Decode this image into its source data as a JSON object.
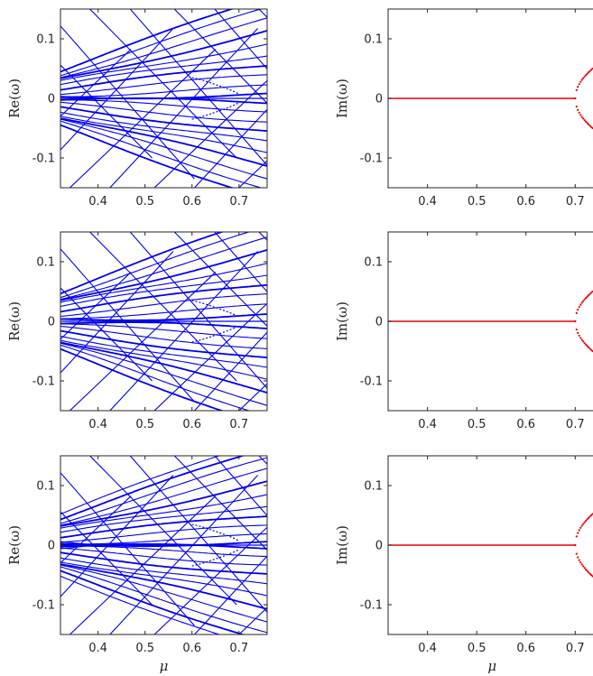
{
  "chart_data": [
    {
      "type": "line",
      "ylabel": "Re(ω)",
      "xlabel": "",
      "xlim": [
        0.32,
        0.76
      ],
      "ylim": [
        -0.15,
        0.15
      ],
      "xticks": [
        0.4,
        0.5,
        0.6,
        0.7
      ],
      "xtick_labels": [
        "0.4",
        "0.5",
        "0.6",
        "0.7"
      ],
      "yticks": [
        0.1,
        0,
        -0.1
      ],
      "ytick_labels": [
        "0.1",
        "0",
        "-0.1"
      ],
      "color": "#0000ee",
      "family_levels": [
        0.005,
        0.015,
        0.03,
        0.045,
        0.06,
        0.075,
        0.09,
        0.105,
        0.12,
        0.135
      ],
      "collision_mu": 0.7,
      "crossing_lines": 16
    },
    {
      "type": "scatter",
      "ylabel": "Im(ω)",
      "xlabel": "",
      "xlim": [
        0.32,
        0.76
      ],
      "ylim": [
        -0.15,
        0.15
      ],
      "xticks": [
        0.4,
        0.5,
        0.6,
        0.7
      ],
      "xtick_labels": [
        "0.4",
        "0.5",
        "0.6",
        "0.7"
      ],
      "yticks": [
        0.1,
        0,
        -0.1
      ],
      "ytick_labels": [
        "0.1",
        "0",
        "-0.1"
      ],
      "color": "#e8000b",
      "baseline": 0,
      "bifurcation_mu": 0.7,
      "branch_max_im": 0.065
    },
    {
      "type": "line",
      "ylabel": "Re(ω)",
      "xlabel": "",
      "xlim": [
        0.32,
        0.76
      ],
      "ylim": [
        -0.15,
        0.15
      ],
      "xticks": [
        0.4,
        0.5,
        0.6,
        0.7
      ],
      "xtick_labels": [
        "0.4",
        "0.5",
        "0.6",
        "0.7"
      ],
      "yticks": [
        0.1,
        0,
        -0.1
      ],
      "ytick_labels": [
        "0.1",
        "0",
        "-0.1"
      ],
      "color": "#0000ee",
      "family_levels": [
        0.008,
        0.02,
        0.035,
        0.05,
        0.065,
        0.08,
        0.095,
        0.11,
        0.125,
        0.14
      ],
      "collision_mu": 0.7,
      "crossing_lines": 16
    },
    {
      "type": "scatter",
      "ylabel": "Im(ω)",
      "xlabel": "",
      "xlim": [
        0.32,
        0.76
      ],
      "ylim": [
        -0.15,
        0.15
      ],
      "xticks": [
        0.4,
        0.5,
        0.6,
        0.7
      ],
      "xtick_labels": [
        "0.4",
        "0.5",
        "0.6",
        "0.7"
      ],
      "yticks": [
        0.1,
        0,
        -0.1
      ],
      "ytick_labels": [
        "0.1",
        "0",
        "-0.1"
      ],
      "color": "#e8000b",
      "baseline": 0,
      "bifurcation_mu": 0.7,
      "branch_max_im": 0.065
    },
    {
      "type": "line",
      "ylabel": "Re(ω)",
      "xlabel": "μ",
      "xlim": [
        0.32,
        0.76
      ],
      "ylim": [
        -0.15,
        0.15
      ],
      "xticks": [
        0.4,
        0.5,
        0.6,
        0.7
      ],
      "xtick_labels": [
        "0.4",
        "0.5",
        "0.6",
        "0.7"
      ],
      "yticks": [
        0.1,
        0,
        -0.1
      ],
      "ytick_labels": [
        "0.1",
        "0",
        "-0.1"
      ],
      "color": "#0000ee",
      "family_levels": [
        0.003,
        0.012,
        0.025,
        0.04,
        0.055,
        0.07,
        0.085,
        0.1,
        0.115,
        0.13,
        0.145
      ],
      "collision_mu": 0.7,
      "crossing_lines": 18,
      "low_mu_band": [
        0.32,
        0.38
      ]
    },
    {
      "type": "scatter",
      "ylabel": "Im(ω)",
      "xlabel": "μ",
      "xlim": [
        0.32,
        0.76
      ],
      "ylim": [
        -0.15,
        0.15
      ],
      "xticks": [
        0.4,
        0.5,
        0.6,
        0.7
      ],
      "xtick_labels": [
        "0.4",
        "0.5",
        "0.6",
        "0.7"
      ],
      "yticks": [
        0.1,
        0,
        -0.1
      ],
      "ytick_labels": [
        "0.1",
        "0",
        "-0.1"
      ],
      "color": "#e8000b",
      "baseline": 0,
      "bifurcation_mu": 0.7,
      "branch_max_im": 0.068
    }
  ]
}
